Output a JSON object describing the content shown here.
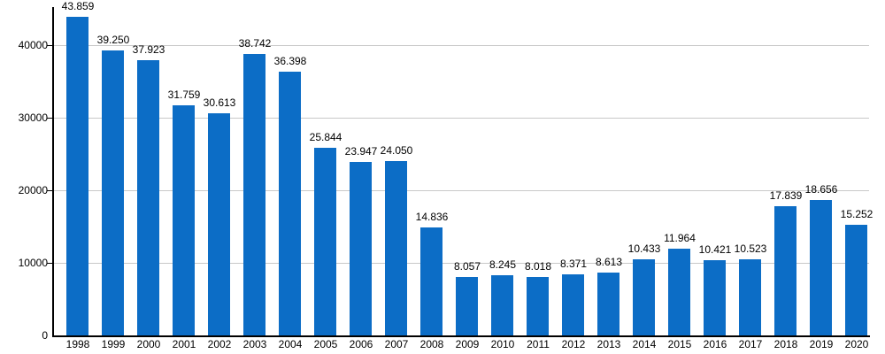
{
  "chart": {
    "background": "#ffffff",
    "bar_color": "#0c6dc6",
    "grid_color": "#c8c8c8",
    "axis_color": "#000000",
    "text_color": "#000000"
  },
  "chart_data": {
    "type": "bar",
    "title": "",
    "xlabel": "",
    "ylabel": "",
    "legend": null,
    "grid": true,
    "categories": [
      "1998",
      "1999",
      "2000",
      "2001",
      "2002",
      "2003",
      "2004",
      "2005",
      "2006",
      "2007",
      "2008",
      "2009",
      "2010",
      "2011",
      "2012",
      "2013",
      "2014",
      "2015",
      "2016",
      "2017",
      "2018",
      "2019",
      "2020"
    ],
    "values": [
      43859,
      39250,
      37923,
      31759,
      30613,
      38742,
      36398,
      25844,
      23947,
      24050,
      14836,
      8057,
      8245,
      8018,
      8371,
      8613,
      10433,
      11964,
      10421,
      10523,
      17839,
      18656,
      15252
    ],
    "value_labels": [
      "43.859",
      "39.250",
      "37.923",
      "31.759",
      "30.613",
      "38.742",
      "36.398",
      "25.844",
      "23.947",
      "24.050",
      "14.836",
      "8.057",
      "8.245",
      "8.018",
      "8.371",
      "8.613",
      "10.433",
      "11.964",
      "10.421",
      "10.523",
      "17.839",
      "18.656",
      "15.252"
    ],
    "y_axis": {
      "ticks": [
        0,
        10000,
        20000,
        30000,
        40000
      ],
      "tick_labels": [
        "0",
        "10000",
        "20000",
        "30000",
        "40000"
      ],
      "ylim": [
        0,
        46200
      ]
    }
  }
}
